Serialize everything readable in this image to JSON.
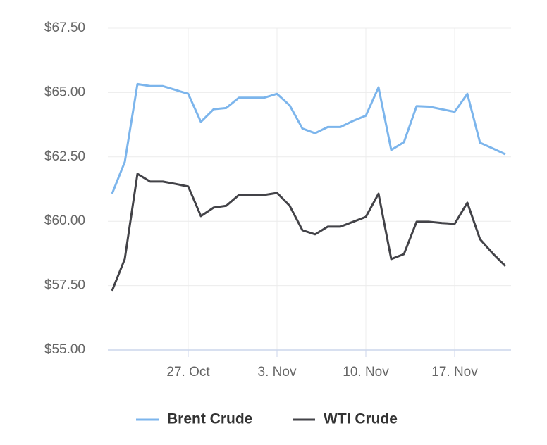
{
  "chart_data": {
    "type": "line",
    "x": [
      "21. Oct",
      "22. Oct",
      "23. Oct",
      "24. Oct",
      "25. Oct",
      "26. Oct",
      "27. Oct",
      "28. Oct",
      "29. Oct",
      "30. Oct",
      "31. Oct",
      "1. Nov",
      "2. Nov",
      "3. Nov",
      "4. Nov",
      "5. Nov",
      "6. Nov",
      "7. Nov",
      "8. Nov",
      "9. Nov",
      "10. Nov",
      "11. Nov",
      "12. Nov",
      "13. Nov",
      "14. Nov",
      "15. Nov",
      "16. Nov",
      "17. Nov",
      "18. Nov",
      "19. Nov",
      "20. Nov",
      "21. Nov"
    ],
    "series": [
      {
        "name": "Brent Crude",
        "color": "#7cb5ec",
        "values": [
          61.07,
          62.3,
          65.33,
          65.25,
          65.25,
          65.1,
          64.95,
          63.86,
          64.35,
          64.4,
          64.8,
          64.8,
          64.8,
          64.95,
          64.5,
          63.6,
          63.42,
          63.66,
          63.66,
          63.9,
          64.1,
          65.2,
          62.77,
          63.07,
          64.47,
          64.45,
          64.35,
          64.25,
          64.95,
          63.05,
          62.83,
          62.6
        ]
      },
      {
        "name": "WTI Crude",
        "color": "#434348",
        "values": [
          57.3,
          58.53,
          61.84,
          61.54,
          61.54,
          61.45,
          61.35,
          60.2,
          60.53,
          60.6,
          61.02,
          61.02,
          61.02,
          61.1,
          60.6,
          59.65,
          59.49,
          59.79,
          59.79,
          59.98,
          60.17,
          61.07,
          58.53,
          58.72,
          59.98,
          59.98,
          59.93,
          59.9,
          60.72,
          59.3,
          58.75,
          58.26
        ]
      }
    ],
    "ylim": [
      55,
      67.5
    ],
    "yticks": [
      {
        "value": 55,
        "label": "$55.00"
      },
      {
        "value": 57.5,
        "label": "$57.50"
      },
      {
        "value": 60,
        "label": "$60.00"
      },
      {
        "value": 62.5,
        "label": "$62.50"
      },
      {
        "value": 65,
        "label": "$65.00"
      },
      {
        "value": 67.5,
        "label": "$67.50"
      }
    ],
    "xticks": [
      "27. Oct",
      "3. Nov",
      "10. Nov",
      "17. Nov"
    ],
    "grid": true,
    "legend": "bottom"
  }
}
